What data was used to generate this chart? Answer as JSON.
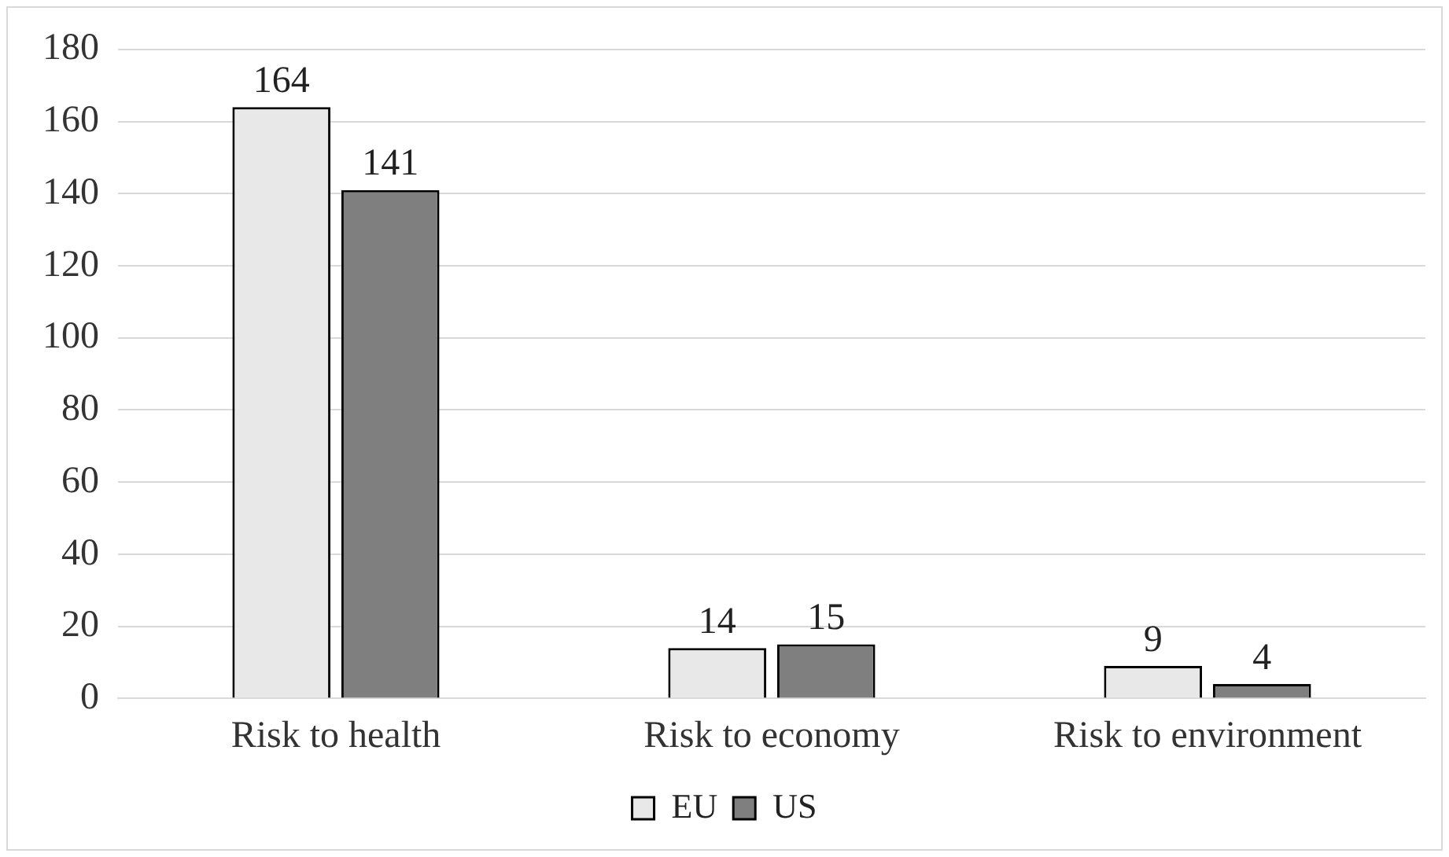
{
  "chart_data": {
    "type": "bar",
    "categories": [
      "Risk to health",
      "Risk to economy",
      "Risk to environment"
    ],
    "series": [
      {
        "name": "EU",
        "color": "#e8e8e8",
        "values": [
          164,
          14,
          9
        ]
      },
      {
        "name": "US",
        "color": "#7f7f7f",
        "values": [
          141,
          15,
          4
        ]
      }
    ],
    "ylim": [
      0,
      180
    ],
    "yticks": [
      0,
      20,
      40,
      60,
      80,
      100,
      120,
      140,
      160,
      180
    ],
    "grid": "y",
    "legend": "bottom",
    "data_labels": true
  }
}
